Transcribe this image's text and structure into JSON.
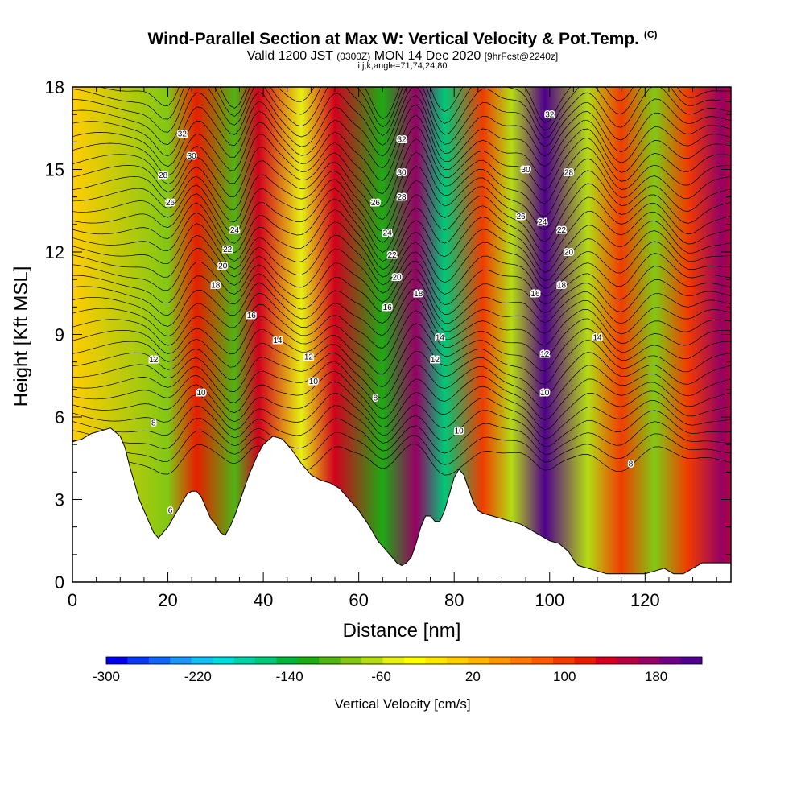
{
  "title": {
    "main": "Wind-Parallel Section at Max W: Vertical Velocity & Pot.Temp.",
    "copyright": "(C)",
    "valid_prefix": "Valid 1200 JST",
    "valid_utc": "(0300Z)",
    "valid_date": "MON 14 Dec 2020",
    "forecast": "[9hrFcst@2240z]",
    "indices": "i,j,k,angle=71,74,24,80"
  },
  "chart_data": {
    "type": "heatmap",
    "xlabel": "Distance [nm]",
    "ylabel": "Height [Kft MSL]",
    "xlim": [
      0,
      138
    ],
    "ylim": [
      0,
      18
    ],
    "x_ticks": [
      "0",
      "20",
      "40",
      "60",
      "80",
      "100",
      "120"
    ],
    "x_tick_values": [
      0,
      20,
      40,
      60,
      80,
      100,
      120
    ],
    "y_ticks": [
      "0",
      "3",
      "6",
      "9",
      "12",
      "15",
      "18"
    ],
    "y_tick_values": [
      0,
      3,
      6,
      9,
      12,
      15,
      18
    ],
    "colorbar": {
      "label": "Vertical Velocity [cm/s]",
      "range": [
        -300,
        220
      ],
      "tick_labels": [
        "-300",
        "-220",
        "-140",
        "-60",
        "20",
        "100",
        "180"
      ],
      "tick_values": [
        -300,
        -220,
        -140,
        -60,
        20,
        100,
        180
      ],
      "colors": [
        "#0000e6",
        "#0a37f0",
        "#1464f5",
        "#1e96f5",
        "#14bef0",
        "#00dcdc",
        "#00d2a5",
        "#00c878",
        "#00b43c",
        "#1eaa14",
        "#50b414",
        "#82c814",
        "#b4dc14",
        "#e6f014",
        "#ffff00",
        "#ffe600",
        "#ffcd00",
        "#ffb400",
        "#ff9600",
        "#ff7800",
        "#ff5a00",
        "#f03c00",
        "#e61e00",
        "#d2001e",
        "#b40041",
        "#960064",
        "#6e0082",
        "#50008c"
      ]
    },
    "terrain_profile": {
      "x": [
        0,
        2,
        4,
        6,
        8,
        10,
        11,
        12,
        13,
        14,
        15,
        16,
        17,
        18,
        19,
        20,
        21,
        22,
        23,
        24,
        25,
        26,
        27,
        28,
        29,
        30,
        31,
        32,
        33,
        34,
        35,
        36,
        37,
        38,
        39,
        40,
        42,
        44,
        46,
        48,
        50,
        52,
        54,
        56,
        58,
        60,
        62,
        63,
        64,
        65,
        66,
        67,
        68,
        69,
        70,
        71,
        72,
        73,
        74,
        75,
        76,
        77,
        78,
        79,
        80,
        81,
        82,
        83,
        84,
        85,
        86,
        88,
        90,
        92,
        94,
        96,
        98,
        100,
        102,
        104,
        105,
        106,
        108,
        110,
        112,
        114,
        116,
        118,
        120,
        122,
        124,
        126,
        128,
        130,
        132,
        134,
        136,
        138
      ],
      "height_kft": [
        5.1,
        5.2,
        5.4,
        5.5,
        5.6,
        5.3,
        4.9,
        4.2,
        3.6,
        3.0,
        2.6,
        2.2,
        1.8,
        1.6,
        1.8,
        2.0,
        2.3,
        2.6,
        2.9,
        3.2,
        3.3,
        3.3,
        3.1,
        2.7,
        2.3,
        2.1,
        1.8,
        1.7,
        2.0,
        2.4,
        2.9,
        3.4,
        3.9,
        4.3,
        4.7,
        5.0,
        5.3,
        5.2,
        4.8,
        4.3,
        3.9,
        3.7,
        3.6,
        3.4,
        3.0,
        2.6,
        2.1,
        1.8,
        1.5,
        1.3,
        1.1,
        0.9,
        0.7,
        0.6,
        0.7,
        0.9,
        1.4,
        2.0,
        2.4,
        2.4,
        2.2,
        2.2,
        2.6,
        3.2,
        3.8,
        4.1,
        3.9,
        3.4,
        2.9,
        2.6,
        2.5,
        2.4,
        2.3,
        2.2,
        2.1,
        1.9,
        1.7,
        1.5,
        1.4,
        1.1,
        0.8,
        0.6,
        0.5,
        0.4,
        0.3,
        0.3,
        0.3,
        0.3,
        0.3,
        0.4,
        0.5,
        0.3,
        0.3,
        0.5,
        0.7,
        0.7,
        0.7,
        0.7
      ]
    },
    "vertical_velocity_bands": [
      {
        "x": 20,
        "w_cms": -80
      },
      {
        "x": 26,
        "w_cms": 120
      },
      {
        "x": 34,
        "w_cms": -110
      },
      {
        "x": 39,
        "w_cms": 130
      },
      {
        "x": 48,
        "w_cms": -50
      },
      {
        "x": 55,
        "w_cms": 140
      },
      {
        "x": 65,
        "w_cms": -120
      },
      {
        "x": 72,
        "w_cms": 180
      },
      {
        "x": 78,
        "w_cms": -170
      },
      {
        "x": 86,
        "w_cms": 90
      },
      {
        "x": 92,
        "w_cms": -60
      },
      {
        "x": 99,
        "w_cms": 220
      },
      {
        "x": 108,
        "w_cms": -70
      },
      {
        "x": 115,
        "w_cms": 100
      },
      {
        "x": 122,
        "w_cms": -90
      },
      {
        "x": 129,
        "w_cms": 90
      },
      {
        "x": 136,
        "w_cms": 170
      }
    ],
    "contour_labels": [
      {
        "text": "32",
        "x": 23,
        "y": 16.3
      },
      {
        "text": "30",
        "x": 25,
        "y": 15.5
      },
      {
        "text": "28",
        "x": 19,
        "y": 14.8
      },
      {
        "text": "26",
        "x": 20.5,
        "y": 13.8
      },
      {
        "text": "24",
        "x": 34,
        "y": 12.8
      },
      {
        "text": "22",
        "x": 32.5,
        "y": 12.1
      },
      {
        "text": "20",
        "x": 31.5,
        "y": 11.5
      },
      {
        "text": "18",
        "x": 30,
        "y": 10.8
      },
      {
        "text": "16",
        "x": 37.5,
        "y": 9.7
      },
      {
        "text": "14",
        "x": 43,
        "y": 8.8
      },
      {
        "text": "12",
        "x": 17,
        "y": 8.1
      },
      {
        "text": "12",
        "x": 49.5,
        "y": 8.2
      },
      {
        "text": "10",
        "x": 27,
        "y": 6.9
      },
      {
        "text": "10",
        "x": 50.5,
        "y": 7.3
      },
      {
        "text": "8",
        "x": 17,
        "y": 5.8
      },
      {
        "text": "8",
        "x": 63.5,
        "y": 6.7
      },
      {
        "text": "6",
        "x": 20.5,
        "y": 2.6
      },
      {
        "text": "32",
        "x": 69,
        "y": 16.1
      },
      {
        "text": "30",
        "x": 69,
        "y": 14.9
      },
      {
        "text": "28",
        "x": 69,
        "y": 14.0
      },
      {
        "text": "26",
        "x": 63.5,
        "y": 13.8
      },
      {
        "text": "24",
        "x": 66,
        "y": 12.7
      },
      {
        "text": "22",
        "x": 67,
        "y": 11.9
      },
      {
        "text": "20",
        "x": 68,
        "y": 11.1
      },
      {
        "text": "18",
        "x": 72.5,
        "y": 10.5
      },
      {
        "text": "16",
        "x": 66,
        "y": 10.0
      },
      {
        "text": "14",
        "x": 77,
        "y": 8.9
      },
      {
        "text": "12",
        "x": 76,
        "y": 8.1
      },
      {
        "text": "10",
        "x": 81,
        "y": 5.5
      },
      {
        "text": "32",
        "x": 100,
        "y": 17.0
      },
      {
        "text": "30",
        "x": 95,
        "y": 15.0
      },
      {
        "text": "28",
        "x": 104,
        "y": 14.9
      },
      {
        "text": "26",
        "x": 94,
        "y": 13.3
      },
      {
        "text": "24",
        "x": 98.5,
        "y": 13.1
      },
      {
        "text": "22",
        "x": 102.5,
        "y": 12.8
      },
      {
        "text": "20",
        "x": 104,
        "y": 12.0
      },
      {
        "text": "18",
        "x": 102.5,
        "y": 10.8
      },
      {
        "text": "16",
        "x": 97,
        "y": 10.5
      },
      {
        "text": "14",
        "x": 110,
        "y": 8.9
      },
      {
        "text": "12",
        "x": 99,
        "y": 8.3
      },
      {
        "text": "10",
        "x": 99,
        "y": 6.9
      },
      {
        "text": "8",
        "x": 117,
        "y": 4.3
      }
    ]
  }
}
